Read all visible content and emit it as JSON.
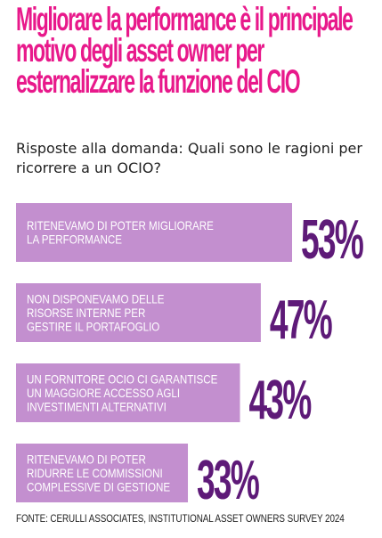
{
  "title": "Migliorare la performance è il principale motivo degli asset owner per esternalizzare la funzione del CIO",
  "subtitle": "Risposte alla domanda: Quali sono le ragioni per ricorrere a un OCIO?",
  "source": "FONTE: CERULLI ASSOCIATES, INSTITUTIONAL ASSET OWNERS SURVEY 2024",
  "colors": {
    "title": "#e8198b",
    "bar": "#c38fcf",
    "bar_text": "#ffffff",
    "value": "#5e1a78"
  },
  "chart_data": {
    "type": "bar",
    "orientation": "horizontal",
    "categories": [
      [
        "RITENEVAMO DI POTER MIGLIORARE",
        "LA PERFORMANCE"
      ],
      [
        "NON DISPONEVAMO DELLE",
        "RISORSE INTERNE PER",
        "GESTIRE IL PORTAFOGLIO"
      ],
      [
        "UN FORNITORE OCIO CI GARANTISCE",
        "UN MAGGIORE ACCESSO AGLI",
        "INVESTIMENTI ALTERNATIVI"
      ],
      [
        "RITENEVAMO DI POTER",
        "RIDURRE LE COMMISSIONI",
        "COMPLESSIVE DI GESTIONE"
      ]
    ],
    "values": [
      53,
      47,
      43,
      33
    ],
    "value_labels": [
      "53%",
      "47%",
      "43%",
      "33%"
    ],
    "unit": "%",
    "grid": false,
    "legend": "none"
  }
}
